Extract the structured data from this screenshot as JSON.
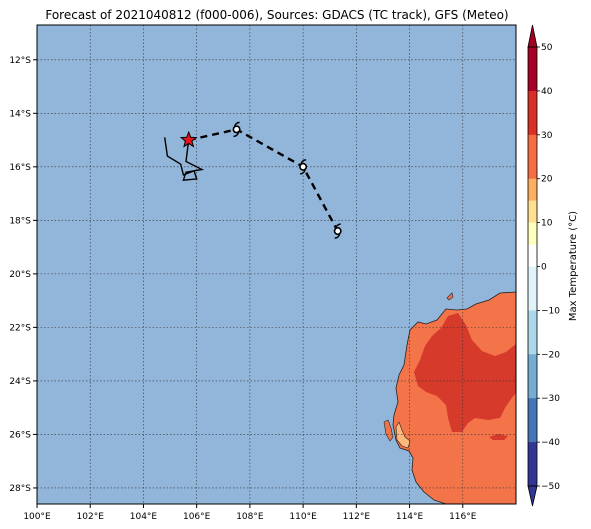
{
  "title": "Forecast of 2021040812 (f000-006), Sources: GDACS (TC track), GFS (Meteo)",
  "map": {
    "lon_range": [
      100,
      118
    ],
    "lat_range": [
      -28.6,
      -10.7
    ],
    "lon_ticks": [
      100,
      102,
      104,
      106,
      108,
      110,
      112,
      114,
      116
    ],
    "lon_tick_labels": [
      "100°E",
      "102°E",
      "104°E",
      "106°E",
      "108°E",
      "110°E",
      "112°E",
      "114°E",
      "116°E"
    ],
    "lat_ticks": [
      -12,
      -14,
      -16,
      -18,
      -20,
      -22,
      -24,
      -26,
      -28
    ],
    "lat_tick_labels": [
      "12°S",
      "14°S",
      "16°S",
      "18°S",
      "20°S",
      "22°S",
      "24°S",
      "26°S",
      "28°S"
    ],
    "gridlines": true,
    "ocean_color": "#92b5da",
    "land_colors": {
      "20_30": "#f4744a",
      "30_40": "#d63a2a",
      "10_20": "#fdb97a"
    }
  },
  "tc_track": {
    "forecast_points": [
      {
        "lon": 105.7,
        "lat": -15.0,
        "symbol": "star"
      },
      {
        "lon": 107.5,
        "lat": -14.6,
        "symbol": "cyclone"
      },
      {
        "lon": 110.0,
        "lat": -16.0,
        "symbol": "cyclone"
      },
      {
        "lon": 111.3,
        "lat": -18.4,
        "symbol": "cyclone"
      }
    ],
    "past_track": [
      [
        104.8,
        -14.9
      ],
      [
        104.9,
        -15.6
      ],
      [
        105.4,
        -15.9
      ],
      [
        105.5,
        -16.3
      ],
      [
        105.9,
        -16.15
      ],
      [
        106.0,
        -16.45
      ],
      [
        105.5,
        -16.5
      ],
      [
        105.6,
        -16.2
      ],
      [
        106.2,
        -16.1
      ],
      [
        105.6,
        -15.8
      ],
      [
        105.7,
        -15.0
      ]
    ],
    "star_color": "#e8141d"
  },
  "colorbar": {
    "label": "Max Temperature (°C)",
    "tick_values": [
      50,
      40,
      30,
      20,
      10,
      0,
      -10,
      -20,
      -30,
      -40,
      -50
    ],
    "tick_labels": [
      "50",
      "40",
      "30",
      "20",
      "10",
      "0",
      "−10",
      "−20",
      "−30",
      "−40",
      "−50"
    ],
    "bins": [
      {
        "from": 45,
        "to": 50,
        "color": "#a50026"
      },
      {
        "from": 40,
        "to": 45,
        "color": "#a50026"
      },
      {
        "from": 35,
        "to": 40,
        "color": "#d73027"
      },
      {
        "from": 30,
        "to": 35,
        "color": "#d73027"
      },
      {
        "from": 25,
        "to": 30,
        "color": "#f46d43"
      },
      {
        "from": 20,
        "to": 25,
        "color": "#f46d43"
      },
      {
        "from": 15,
        "to": 20,
        "color": "#fdae61"
      },
      {
        "from": 10,
        "to": 15,
        "color": "#fee090"
      },
      {
        "from": 5,
        "to": 10,
        "color": "#ffffbf"
      },
      {
        "from": 0,
        "to": 5,
        "color": "#ffffff"
      },
      {
        "from": -5,
        "to": 0,
        "color": "#e0f3f8"
      },
      {
        "from": -10,
        "to": -5,
        "color": "#e0f3f8"
      },
      {
        "from": -15,
        "to": -10,
        "color": "#abd9e9"
      },
      {
        "from": -20,
        "to": -15,
        "color": "#abd9e9"
      },
      {
        "from": -25,
        "to": -20,
        "color": "#74add1"
      },
      {
        "from": -30,
        "to": -25,
        "color": "#74add1"
      },
      {
        "from": -35,
        "to": -30,
        "color": "#4575b4"
      },
      {
        "from": -40,
        "to": -35,
        "color": "#4575b4"
      },
      {
        "from": -45,
        "to": -40,
        "color": "#313695"
      },
      {
        "from": -50,
        "to": -45,
        "color": "#313695"
      }
    ]
  }
}
